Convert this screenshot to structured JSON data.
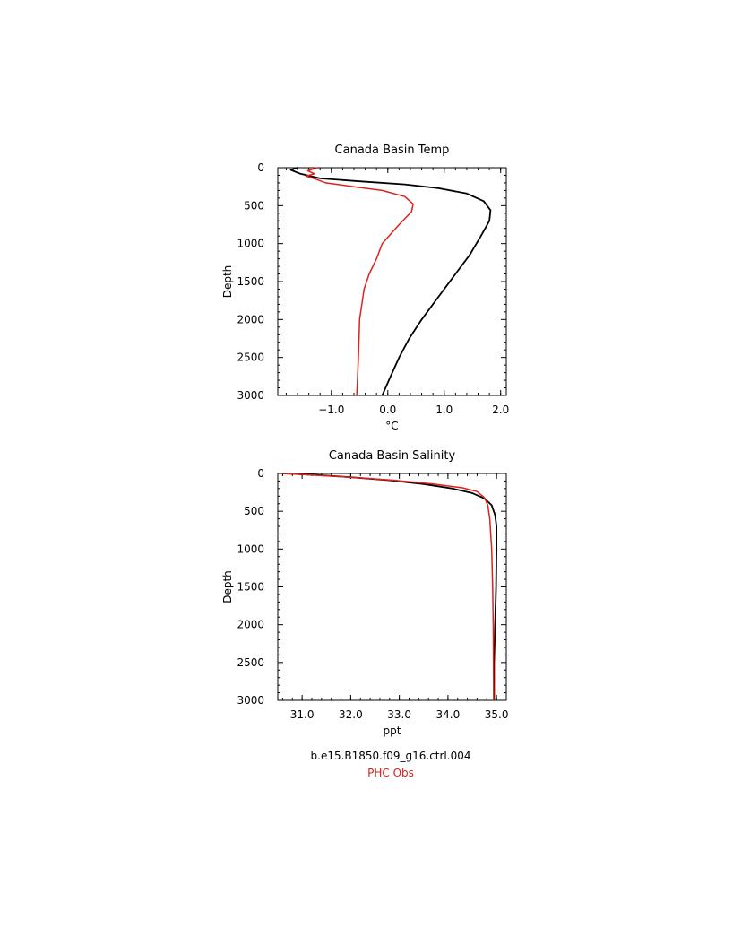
{
  "chart_data": [
    {
      "type": "line",
      "title": "Canada Basin Temp",
      "xlabel": "°C",
      "ylabel": "Depth",
      "xlim": [
        -1.95,
        2.1
      ],
      "ylim": [
        3000,
        0
      ],
      "y_inverted": true,
      "xticks": [
        -1.0,
        0.0,
        1.0,
        2.0
      ],
      "xtick_labels": [
        "−1.0",
        "0.0",
        "1.0",
        "2.0"
      ],
      "yticks": [
        0,
        500,
        1000,
        1500,
        2000,
        2500,
        3000
      ],
      "ytick_labels": [
        "0",
        "500",
        "1000",
        "1500",
        "2000",
        "2500",
        "3000"
      ],
      "series": [
        {
          "name": "b.e15.B1850.f09_g16.ctrl.004",
          "color": "#000000",
          "x": [
            -1.6,
            -1.72,
            -1.55,
            -1.2,
            -0.5,
            0.3,
            0.9,
            1.4,
            1.7,
            1.82,
            1.8,
            1.65,
            1.45,
            1.2,
            0.9,
            0.6,
            0.38,
            0.2,
            0.05,
            -0.1
          ],
          "y": [
            0,
            30,
            80,
            140,
            180,
            220,
            270,
            340,
            440,
            560,
            700,
            900,
            1150,
            1400,
            1700,
            2000,
            2250,
            2500,
            2750,
            3000
          ]
        },
        {
          "name": "PHC Obs",
          "color": "#e0201b",
          "x": [
            -1.25,
            -1.42,
            -1.3,
            -1.45,
            -1.28,
            -1.1,
            -0.6,
            -0.1,
            0.3,
            0.45,
            0.42,
            0.2,
            -0.1,
            -0.2,
            -0.33,
            -0.42,
            -0.5,
            -0.52,
            -0.55
          ],
          "y": [
            0,
            40,
            80,
            110,
            150,
            200,
            250,
            300,
            380,
            480,
            580,
            750,
            1000,
            1200,
            1400,
            1600,
            2000,
            2500,
            3000
          ]
        }
      ]
    },
    {
      "type": "line",
      "title": "Canada Basin Salinity",
      "xlabel": "ppt",
      "ylabel": "Depth",
      "xlim": [
        30.5,
        35.2
      ],
      "ylim": [
        3000,
        0
      ],
      "y_inverted": true,
      "xticks": [
        31.0,
        32.0,
        33.0,
        34.0,
        35.0
      ],
      "xtick_labels": [
        "31.0",
        "32.0",
        "33.0",
        "34.0",
        "35.0"
      ],
      "yticks": [
        0,
        500,
        1000,
        1500,
        2000,
        2500,
        3000
      ],
      "ytick_labels": [
        "0",
        "500",
        "1000",
        "1500",
        "2000",
        "2500",
        "3000"
      ],
      "series": [
        {
          "name": "b.e15.B1850.f09_g16.ctrl.004",
          "color": "#000000",
          "x": [
            30.6,
            31.3,
            32.0,
            32.8,
            33.5,
            34.1,
            34.5,
            34.75,
            34.9,
            34.97,
            35.0,
            35.0,
            34.99,
            34.97,
            34.95,
            34.95
          ],
          "y": [
            0,
            20,
            50,
            90,
            140,
            200,
            260,
            330,
            420,
            550,
            700,
            1000,
            1500,
            2000,
            2500,
            3000
          ]
        },
        {
          "name": "PHC Obs",
          "color": "#e0201b",
          "x": [
            30.6,
            31.2,
            32.0,
            32.9,
            33.7,
            34.3,
            34.6,
            34.75,
            34.82,
            34.86,
            34.9,
            34.92,
            34.93,
            34.94
          ],
          "y": [
            0,
            20,
            50,
            90,
            140,
            190,
            240,
            320,
            420,
            600,
            1000,
            1500,
            2000,
            3000
          ]
        }
      ]
    }
  ],
  "legend": {
    "run_label": "b.e15.B1850.f09_g16.ctrl.004",
    "obs_label": "PHC Obs"
  }
}
